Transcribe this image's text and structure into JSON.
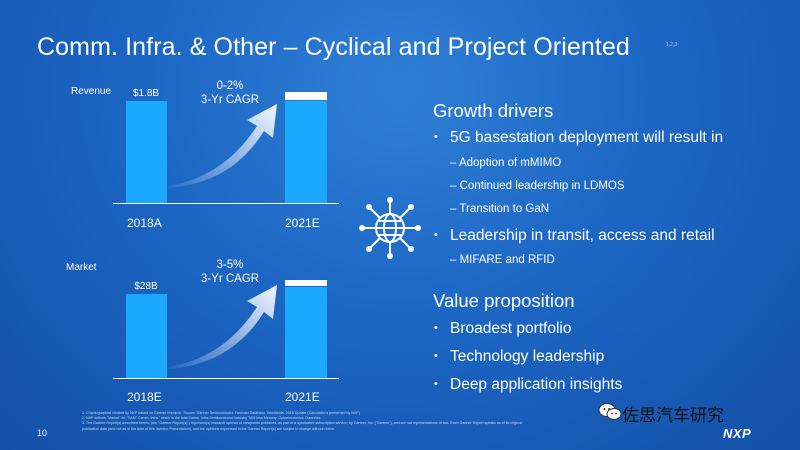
{
  "slide": {
    "title": "Comm. Infra. & Other – Cyclical and Project Oriented",
    "title_superscript": "1,2,3",
    "page_number": "10"
  },
  "colors": {
    "background": "#1c66c4",
    "bar": "#1ba9ff",
    "bar_cap": "#ffffff",
    "text": "#ffffff"
  },
  "charts": {
    "revenue": {
      "label": "Revenue",
      "bar1": {
        "value_label": "$1.8B",
        "category": "2018A"
      },
      "bar2": {
        "category": "2021E"
      },
      "cagr": {
        "line1": "0-2%",
        "line2": "3-Yr CAGR"
      }
    },
    "market": {
      "label": "Market",
      "bar1": {
        "value_label": "$28B",
        "category": "2018E"
      },
      "bar2": {
        "category": "2021E"
      },
      "cagr": {
        "line1": "3-5%",
        "line2": "3-Yr CAGR"
      }
    }
  },
  "growth_drivers": {
    "heading": "Growth drivers",
    "item1": "5G basestation deployment will result in",
    "sub1": [
      "Adoption of mMIMO",
      "Continued leadership in LDMOS",
      "Transition to GaN"
    ],
    "item2": "Leadership in transit, access and retail",
    "sub2": [
      "MIFARE and RFID"
    ]
  },
  "value_proposition": {
    "heading": "Value proposition",
    "items": [
      "Broadest portfolio",
      "Technology leadership",
      "Deep application insights"
    ]
  },
  "icons": {
    "center": "network-globe-icon",
    "watermark": "wechat-icon"
  },
  "footnotes": [
    "1.     Charts/graphics created by NXP based on Gartner research. Source: Gartner Semiconductor Forecast Database, Worldwide, 2018 Update (Calculations performed by NXP)",
    "2.     NXP defines \"Market\" for \"SAM\" Comm. Infra.\" which is the total Comm. Infra Semiconductor Industry TAM less Memory, Optoelectronics, Discretes",
    "3.     The Gartner Report(s) described herein, (the \"Gartner Report(s)\") represent(s) research opinion or viewpoints published, as part of a syndicated subscription service, by Gartner, Inc. (\"Gartner\"), and are not representations of fact. Each Gartner Report speaks as of its original",
    "        publication date (and not as of the date of this Investor Presentation), and the opinions expressed in the Gartner Report(s) are subject to change without notice."
  ],
  "watermark": {
    "text": "佐思汽车研究"
  },
  "logo": {
    "text": "NXP"
  }
}
